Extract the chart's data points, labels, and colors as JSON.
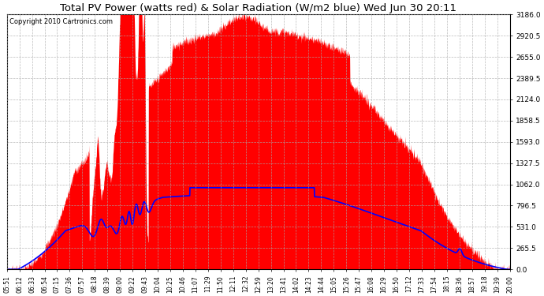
{
  "title": "Total PV Power (watts red) & Solar Radiation (W/m2 blue) Wed Jun 30 20:11",
  "copyright": "Copyright 2010 Cartronics.com",
  "y_min": 0.0,
  "y_max": 3186.0,
  "y_ticks": [
    0.0,
    265.5,
    531.0,
    796.5,
    1062.0,
    1327.5,
    1593.0,
    1858.5,
    2124.0,
    2389.5,
    2655.0,
    2920.5,
    3186.0
  ],
  "background_color": "#ffffff",
  "plot_bg_color": "#ffffff",
  "grid_color": "#aaaaaa",
  "title_fontsize": 9.5,
  "copyright_fontsize": 6,
  "x_labels": [
    "05:51",
    "06:12",
    "06:33",
    "06:54",
    "07:15",
    "07:36",
    "07:57",
    "08:18",
    "08:39",
    "09:00",
    "09:22",
    "09:43",
    "10:04",
    "10:25",
    "10:46",
    "11:07",
    "11:29",
    "11:50",
    "12:11",
    "12:32",
    "12:59",
    "13:20",
    "13:41",
    "14:02",
    "14:23",
    "14:44",
    "15:05",
    "15:26",
    "15:47",
    "16:08",
    "16:29",
    "16:50",
    "17:12",
    "17:33",
    "17:54",
    "18:15",
    "18:36",
    "18:57",
    "19:18",
    "19:39",
    "20:00"
  ]
}
